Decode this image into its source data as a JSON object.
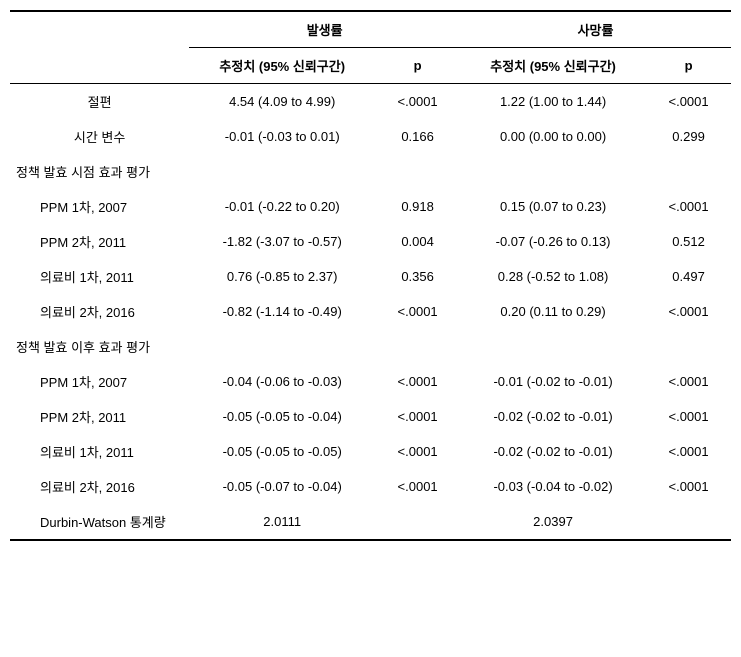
{
  "headers": {
    "group1": "발생률",
    "group2": "사망률",
    "est": "추정치 (95% 신뢰구간)",
    "p": "p"
  },
  "rows": {
    "intercept": {
      "label": "절편",
      "g1_est": "4.54 (4.09 to 4.99)",
      "g1_p": "<.0001",
      "g2_est": "1.22 (1.00 to 1.44)",
      "g2_p": "<.0001"
    },
    "time": {
      "label": "시간 변수",
      "g1_est": "-0.01 (-0.03 to 0.01)",
      "g1_p": "0.166",
      "g2_est": "0.00 (0.00 to 0.00)",
      "g2_p": "0.299"
    },
    "section1": {
      "label": "정책 발효 시점 효과 평가"
    },
    "s1r1": {
      "label": "PPM 1차, 2007",
      "g1_est": "-0.01 (-0.22 to 0.20)",
      "g1_p": "0.918",
      "g2_est": "0.15 (0.07 to 0.23)",
      "g2_p": "<.0001"
    },
    "s1r2": {
      "label": "PPM 2차, 2011",
      "g1_est": "-1.82 (-3.07 to -0.57)",
      "g1_p": "0.004",
      "g2_est": "-0.07 (-0.26 to 0.13)",
      "g2_p": "0.512"
    },
    "s1r3": {
      "label": "의료비 1차, 2011",
      "g1_est": "0.76 (-0.85 to 2.37)",
      "g1_p": "0.356",
      "g2_est": "0.28 (-0.52 to 1.08)",
      "g2_p": "0.497"
    },
    "s1r4": {
      "label": "의료비 2차, 2016",
      "g1_est": "-0.82 (-1.14 to -0.49)",
      "g1_p": "<.0001",
      "g2_est": "0.20 (0.11 to 0.29)",
      "g2_p": "<.0001"
    },
    "section2": {
      "label": "정책 발효 이후 효과 평가"
    },
    "s2r1": {
      "label": "PPM 1차, 2007",
      "g1_est": "-0.04 (-0.06 to -0.03)",
      "g1_p": "<.0001",
      "g2_est": "-0.01 (-0.02 to -0.01)",
      "g2_p": "<.0001"
    },
    "s2r2": {
      "label": "PPM 2차, 2011",
      "g1_est": "-0.05 (-0.05 to -0.04)",
      "g1_p": "<.0001",
      "g2_est": "-0.02 (-0.02 to -0.01)",
      "g2_p": "<.0001"
    },
    "s2r3": {
      "label": "의료비 1차, 2011",
      "g1_est": "-0.05 (-0.05 to -0.05)",
      "g1_p": "<.0001",
      "g2_est": "-0.02 (-0.02 to -0.01)",
      "g2_p": "<.0001"
    },
    "s2r4": {
      "label": "의료비 2차, 2016",
      "g1_est": "-0.05 (-0.07 to -0.04)",
      "g1_p": "<.0001",
      "g2_est": "-0.03 (-0.04 to -0.02)",
      "g2_p": "<.0001"
    },
    "dw": {
      "label": "Durbin-Watson 통계량",
      "g1_est": "2.0111",
      "g1_p": "",
      "g2_est": "2.0397",
      "g2_p": ""
    }
  },
  "colors": {
    "text": "#000000",
    "background": "#ffffff",
    "border": "#000000"
  },
  "font": {
    "family": "Malgun Gothic",
    "size_pt": 10
  }
}
